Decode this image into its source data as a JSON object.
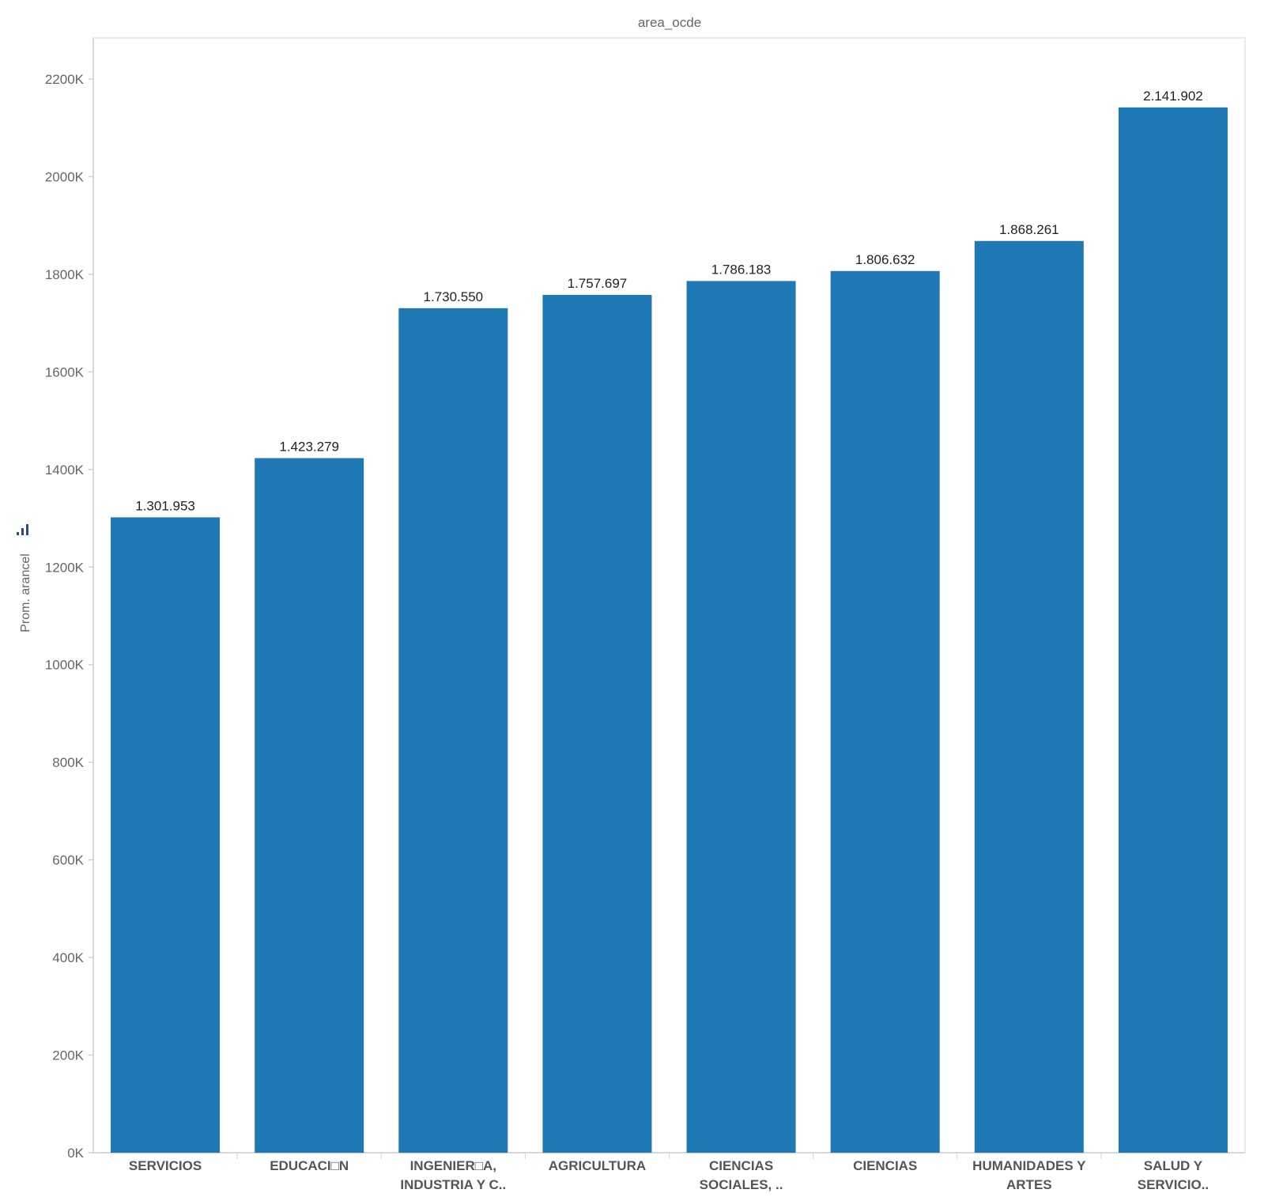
{
  "chart_data": {
    "type": "bar",
    "title": "area_ocde",
    "xlabel": "",
    "ylabel": "Prom. arancel",
    "ylim": [
      0,
      2300000
    ],
    "y_ticks": [
      "0K",
      "200K",
      "400K",
      "600K",
      "800K",
      "1000K",
      "1200K",
      "1400K",
      "1600K",
      "1800K",
      "2000K",
      "2200K"
    ],
    "y_tick_values": [
      0,
      200000,
      400000,
      600000,
      800000,
      1000000,
      1200000,
      1400000,
      1600000,
      1800000,
      2000000,
      2200000
    ],
    "categories": [
      [
        "SERVICIOS"
      ],
      [
        "EDUCACI□N"
      ],
      [
        "INGENIER□A,",
        "INDUSTRIA Y C.."
      ],
      [
        "AGRICULTURA"
      ],
      [
        "CIENCIAS",
        "SOCIALES, .."
      ],
      [
        "CIENCIAS"
      ],
      [
        "HUMANIDADES Y",
        "ARTES"
      ],
      [
        "SALUD Y",
        "SERVICIO.."
      ]
    ],
    "values": [
      1301953,
      1423279,
      1730550,
      1757697,
      1786183,
      1806632,
      1868261,
      2141902
    ],
    "value_labels": [
      "1.301.953",
      "1.423.279",
      "1.730.550",
      "1.757.697",
      "1.786.183",
      "1.806.632",
      "1.868.261",
      "2.141.902"
    ],
    "bar_color": "#1f77b4",
    "grid": false,
    "legend": "none"
  }
}
